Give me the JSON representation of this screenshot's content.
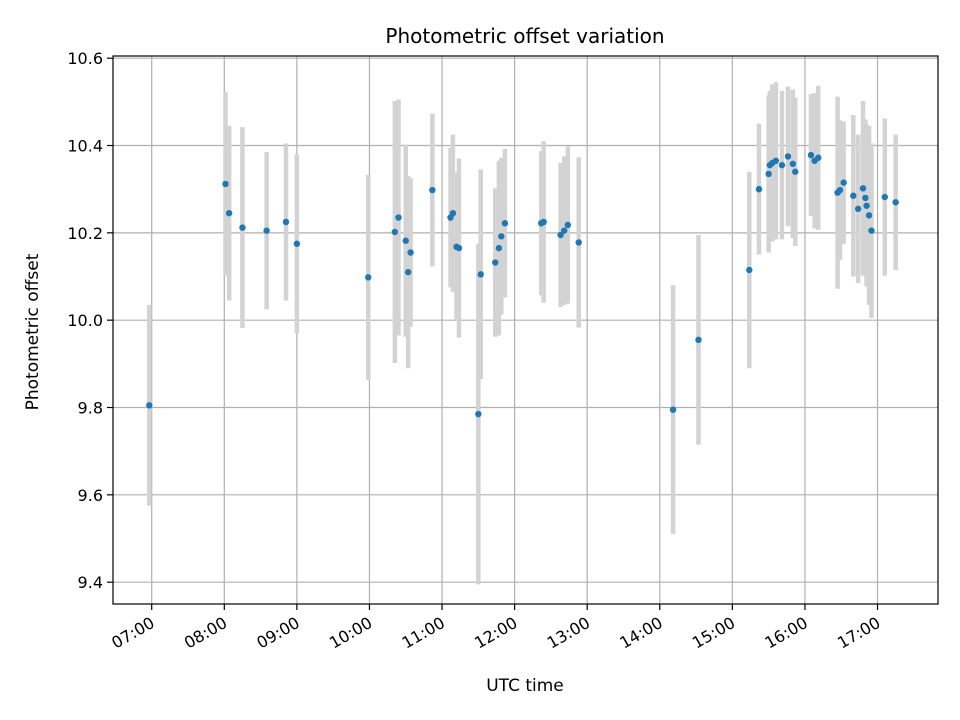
{
  "chart_data": {
    "type": "scatter",
    "title": "Photometric offset variation",
    "xlabel": "UTC time",
    "ylabel": "Photometric offset",
    "xlim": [
      "06:28",
      "17:50"
    ],
    "ylim": [
      9.35,
      10.605
    ],
    "x_ticks": [
      "07:00",
      "08:00",
      "09:00",
      "10:00",
      "11:00",
      "12:00",
      "13:00",
      "14:00",
      "15:00",
      "16:00",
      "17:00"
    ],
    "y_ticks": [
      9.4,
      9.6,
      9.8,
      10.0,
      10.2,
      10.4,
      10.6
    ],
    "grid": true,
    "colors": {
      "point": "#1f77b4",
      "errorbar": "#d3d3d3",
      "grid": "#b0b0b0"
    },
    "series": [
      {
        "x": [
          "06:58",
          "08:01",
          "08:04",
          "08:15",
          "08:35",
          "08:51",
          "09:00",
          "09:59",
          "10:21",
          "10:24",
          "10:30",
          "10:32",
          "10:34",
          "10:52",
          "11:07",
          "11:09",
          "11:12",
          "11:14",
          "11:30",
          "11:32",
          "11:44",
          "11:47",
          "11:49",
          "11:52",
          "12:22",
          "12:24",
          "12:38",
          "12:41",
          "12:44",
          "12:53",
          "14:11",
          "14:32",
          "15:14",
          "15:22",
          "15:30",
          "15:31",
          "15:33",
          "15:36",
          "15:41",
          "15:46",
          "15:50",
          "15:52",
          "16:05",
          "16:08",
          "16:11",
          "16:27",
          "16:29",
          "16:32",
          "16:40",
          "16:44",
          "16:48",
          "16:50",
          "16:51",
          "16:53",
          "16:55",
          "17:06",
          "17:15"
        ],
        "y": [
          9.805,
          10.312,
          10.245,
          10.212,
          10.205,
          10.225,
          10.175,
          10.098,
          10.202,
          10.235,
          10.182,
          10.11,
          10.155,
          10.298,
          10.235,
          10.245,
          10.168,
          10.165,
          9.785,
          10.105,
          10.132,
          10.165,
          10.192,
          10.222,
          10.222,
          10.225,
          10.195,
          10.205,
          10.218,
          10.178,
          9.795,
          9.955,
          10.115,
          10.3,
          10.335,
          10.355,
          10.36,
          10.365,
          10.355,
          10.375,
          10.358,
          10.34,
          10.378,
          10.365,
          10.372,
          10.292,
          10.298,
          10.315,
          10.285,
          10.255,
          10.302,
          10.28,
          10.262,
          10.24,
          10.205,
          10.282,
          10.27
        ],
        "err": [
          0.23,
          0.21,
          0.2,
          0.23,
          0.18,
          0.18,
          0.205,
          0.235,
          0.3,
          0.27,
          0.22,
          0.22,
          0.17,
          0.175,
          0.16,
          0.18,
          0.17,
          0.205,
          0.39,
          0.24,
          0.17,
          0.2,
          0.18,
          0.17,
          0.165,
          0.185,
          0.165,
          0.17,
          0.18,
          0.195,
          0.285,
          0.24,
          0.225,
          0.15,
          0.18,
          0.17,
          0.18,
          0.18,
          0.17,
          0.16,
          0.17,
          0.17,
          0.14,
          0.155,
          0.165,
          0.22,
          0.16,
          0.14,
          0.185,
          0.17,
          0.2,
          0.18,
          0.185,
          0.205,
          0.2,
          0.18,
          0.155
        ]
      }
    ]
  }
}
